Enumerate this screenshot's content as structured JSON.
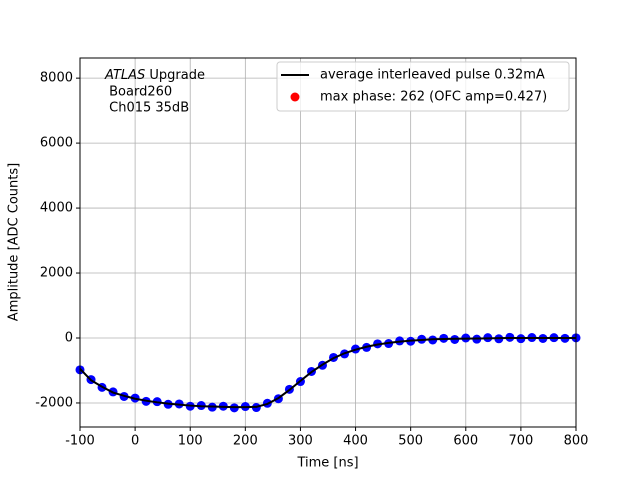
{
  "chart_data": {
    "type": "line",
    "xlabel": "Time [ns]",
    "ylabel": "Amplitude [ADC Counts]",
    "annotation": {
      "italic": "ATLAS",
      "first_rest": " Upgrade",
      "lines": [
        " Board260",
        " Ch015 35dB"
      ]
    },
    "x": [
      -100,
      -80,
      -60,
      -40,
      -20,
      0,
      20,
      40,
      60,
      80,
      100,
      120,
      140,
      160,
      180,
      200,
      220,
      240,
      260,
      280,
      300,
      320,
      340,
      360,
      380,
      400,
      420,
      440,
      460,
      480,
      500,
      520,
      540,
      560,
      580,
      600,
      620,
      640,
      660,
      680,
      700,
      720,
      740,
      760,
      780,
      800
    ],
    "series": [
      {
        "name": "average interleaved pulse 0.32mA",
        "color": "#000000",
        "kind": "line",
        "values": [
          -950,
          -1300,
          -1500,
          -1680,
          -1780,
          -1870,
          -1930,
          -1980,
          -2020,
          -2050,
          -2080,
          -2100,
          -2110,
          -2120,
          -2130,
          -2130,
          -2120,
          -2030,
          -1850,
          -1600,
          -1320,
          -1050,
          -820,
          -620,
          -470,
          -360,
          -270,
          -200,
          -150,
          -110,
          -80,
          -60,
          -40,
          -30,
          -25,
          -20,
          -15,
          -10,
          -5,
          0,
          0,
          0,
          0,
          0,
          0,
          0
        ]
      },
      {
        "name": "max phase: 262 (OFC amp=0.427)",
        "color": "#0000ff",
        "legend_color": "#ff0000",
        "kind": "scatter",
        "values": [
          -980,
          -1280,
          -1520,
          -1660,
          -1800,
          -1850,
          -1950,
          -1960,
          -2040,
          -2030,
          -2100,
          -2080,
          -2130,
          -2100,
          -2150,
          -2110,
          -2140,
          -2010,
          -1870,
          -1580,
          -1340,
          -1030,
          -840,
          -600,
          -490,
          -340,
          -290,
          -180,
          -170,
          -90,
          -100,
          -40,
          -60,
          -10,
          -45,
          0,
          -35,
          10,
          -25,
          20,
          -20,
          15,
          -15,
          10,
          -10,
          5
        ]
      }
    ],
    "xlim": [
      -100,
      800
    ],
    "xticks": [
      -100,
      0,
      100,
      200,
      300,
      400,
      500,
      600,
      700,
      800
    ],
    "ylim": [
      -2740,
      8620
    ],
    "yticks": [
      -2000,
      0,
      2000,
      4000,
      6000,
      8000
    ],
    "grid": true,
    "legend": "upper right"
  }
}
